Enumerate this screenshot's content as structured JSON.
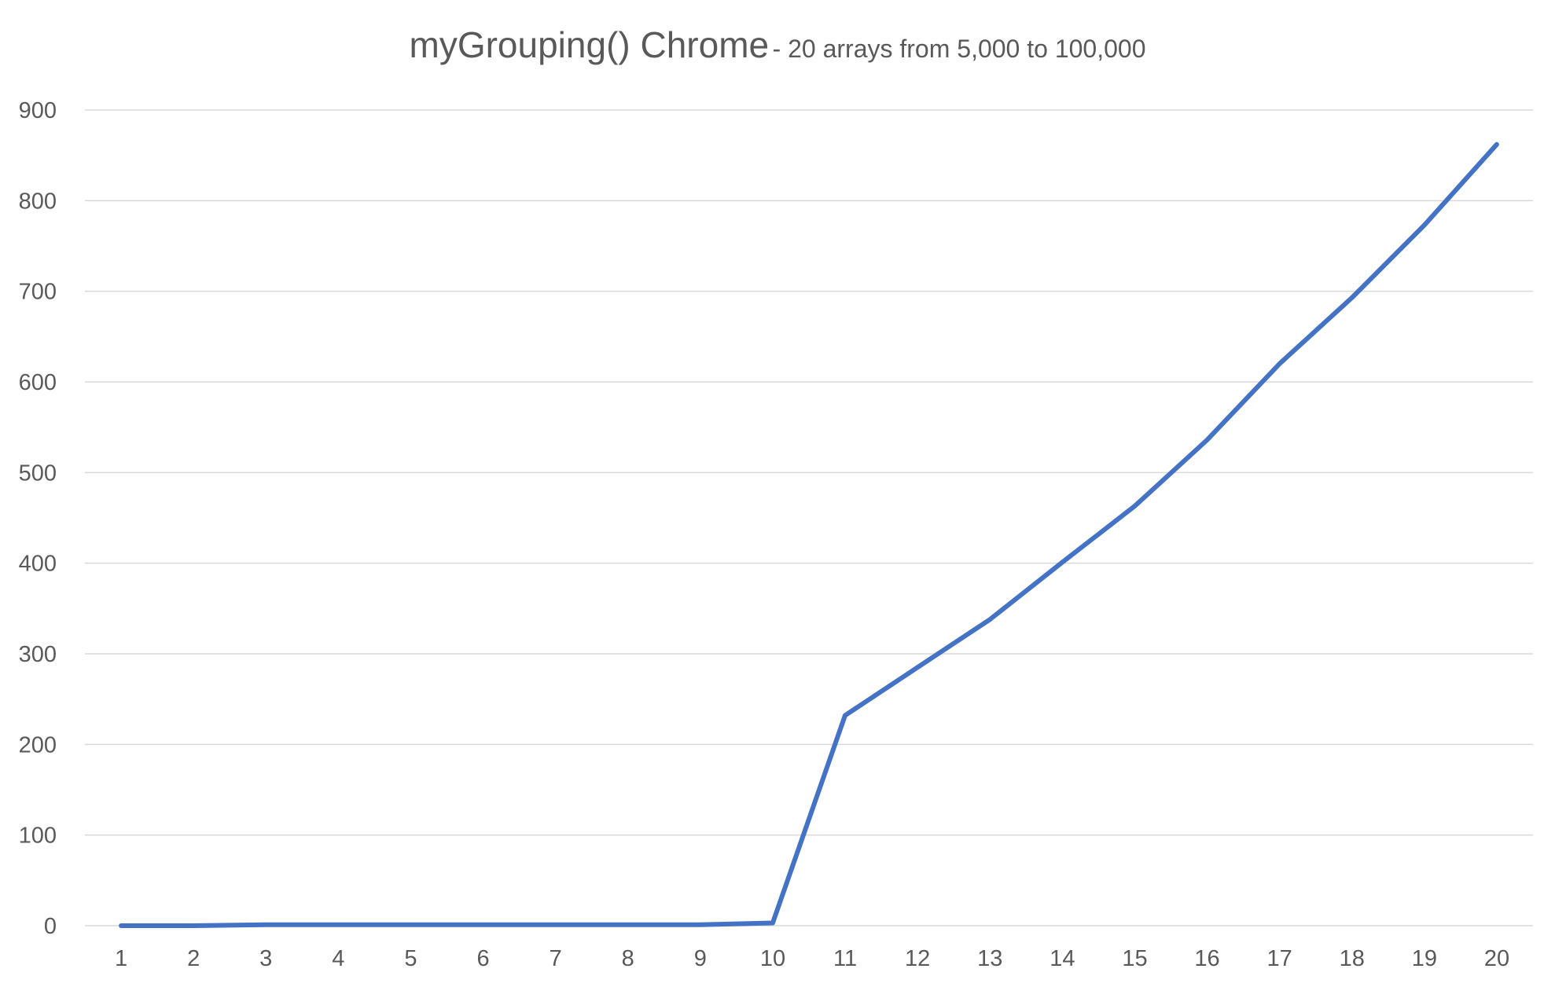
{
  "chart_data": {
    "type": "line",
    "title": "myGrouping() Chrome",
    "subtitle": "- 20 arrays from 5,000 to 100,000",
    "xlabel": "",
    "ylabel": "",
    "categories": [
      "1",
      "2",
      "3",
      "4",
      "5",
      "6",
      "7",
      "8",
      "9",
      "10",
      "11",
      "12",
      "13",
      "14",
      "15",
      "16",
      "17",
      "18",
      "19",
      "20"
    ],
    "series": [
      {
        "values": [
          0,
          0,
          1,
          1,
          1,
          1,
          1,
          1,
          1,
          3,
          232,
          285,
          338,
          401,
          463,
          536,
          620,
          693,
          773,
          862
        ],
        "color": "#4472C4"
      }
    ],
    "ylim": [
      0,
      900
    ],
    "yticks": [
      0,
      100,
      200,
      300,
      400,
      500,
      600,
      700,
      800,
      900
    ],
    "grid": true,
    "legend": "none",
    "gridColor": "#D9D9D9",
    "textColor": "#595959"
  }
}
